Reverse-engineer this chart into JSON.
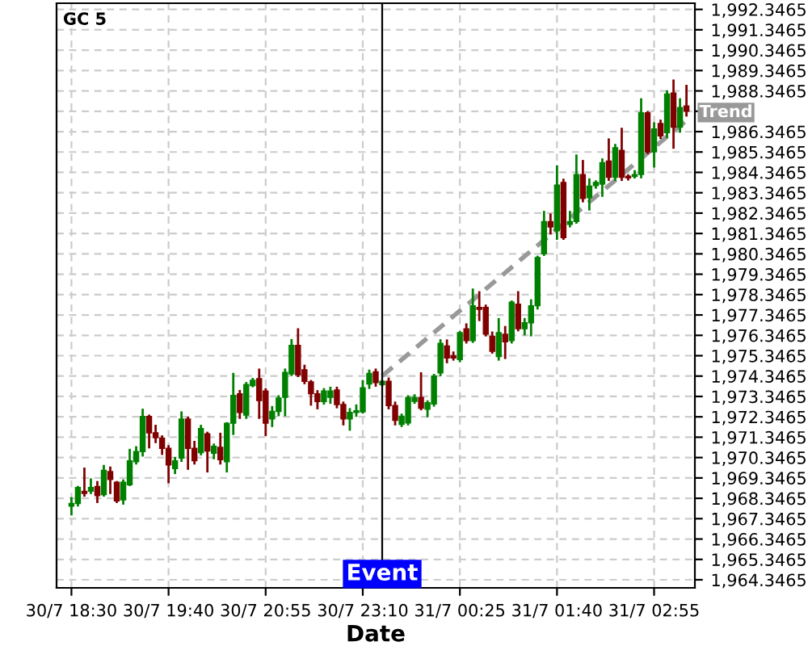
{
  "chart_data": {
    "type": "candlestick",
    "title": "GC 5",
    "xlabel": "Date",
    "categories": [
      "30/7 18:30",
      null,
      null,
      null,
      null,
      null,
      null,
      null,
      null,
      null,
      null,
      null,
      null,
      null,
      null,
      "30/7 19:40",
      null,
      null,
      null,
      null,
      null,
      null,
      null,
      null,
      null,
      null,
      null,
      null,
      null,
      null,
      "30/7 20:55",
      null,
      null,
      null,
      null,
      null,
      null,
      null,
      null,
      null,
      null,
      null,
      null,
      null,
      null,
      "30/7 23:10",
      null,
      null,
      null,
      null,
      null,
      null,
      null,
      null,
      null,
      null,
      null,
      null,
      null,
      null,
      "31/7 00:25",
      null,
      null,
      null,
      null,
      null,
      null,
      null,
      null,
      null,
      null,
      null,
      null,
      null,
      null,
      "31/7 01:40",
      null,
      null,
      null,
      null,
      null,
      null,
      null,
      null,
      null,
      null,
      null,
      null,
      null,
      null,
      "31/7 02:55",
      null,
      null,
      null,
      null,
      null
    ],
    "ohlc": [
      [
        1967.96,
        1968.35,
        1967.56,
        1968.09
      ],
      [
        1968.09,
        1968.9,
        1968.0,
        1968.88
      ],
      [
        1968.69,
        1969.8,
        1968.48,
        1968.59
      ],
      [
        1968.69,
        1969.27,
        1968.61,
        1968.88
      ],
      [
        1968.93,
        1969.14,
        1968.17,
        1968.48
      ],
      [
        1968.53,
        1969.93,
        1968.48,
        1969.72
      ],
      [
        1969.66,
        1969.85,
        1968.61,
        1969.27
      ],
      [
        1969.14,
        1969.14,
        1968.17,
        1968.22
      ],
      [
        1968.27,
        1969.22,
        1968.09,
        1969.14
      ],
      [
        1969.01,
        1970.72,
        1969.0,
        1970.19
      ],
      [
        1970.14,
        1970.85,
        1970.06,
        1970.64
      ],
      [
        1970.64,
        1972.69,
        1970.45,
        1972.37
      ],
      [
        1972.37,
        1972.4,
        1970.85,
        1971.56
      ],
      [
        1971.56,
        1971.9,
        1971.11,
        1971.32
      ],
      [
        1971.3,
        1971.38,
        1970.53,
        1970.8
      ],
      [
        1970.8,
        1970.9,
        1969.14,
        1969.98
      ],
      [
        1969.8,
        1970.32,
        1969.59,
        1970.19
      ],
      [
        1970.32,
        1972.56,
        1970.19,
        1972.24
      ],
      [
        1972.24,
        1972.3,
        1969.8,
        1970.8
      ],
      [
        1970.8,
        1971.11,
        1970.06,
        1970.19
      ],
      [
        1970.59,
        1971.9,
        1970.51,
        1971.77
      ],
      [
        1971.51,
        1971.56,
        1969.67,
        1970.67
      ],
      [
        1970.56,
        1970.98,
        1970.32,
        1970.9
      ],
      [
        1970.85,
        1971.51,
        1970.06,
        1970.24
      ],
      [
        1970.14,
        1972.03,
        1969.67,
        1972.03
      ],
      [
        1972.03,
        1974.45,
        1971.51,
        1973.4
      ],
      [
        1973.48,
        1973.61,
        1972.3,
        1972.56
      ],
      [
        1972.43,
        1974.0,
        1972.3,
        1973.93
      ],
      [
        1973.88,
        1974.2,
        1973.85,
        1974.14
      ],
      [
        1974.22,
        1974.66,
        1972.3,
        1973.14
      ],
      [
        1973.61,
        1973.7,
        1971.46,
        1972.03
      ],
      [
        1972.24,
        1972.82,
        1971.9,
        1972.61
      ],
      [
        1972.61,
        1973.35,
        1972.43,
        1973.27
      ],
      [
        1973.3,
        1974.66,
        1972.43,
        1974.53
      ],
      [
        1974.45,
        1976.11,
        1974.4,
        1975.85
      ],
      [
        1975.85,
        1976.64,
        1974.35,
        1974.4
      ],
      [
        1974.66,
        1974.85,
        1974.0,
        1974.09
      ],
      [
        1974.06,
        1974.1,
        1972.95,
        1973.48
      ],
      [
        1973.48,
        1973.6,
        1972.77,
        1973.09
      ],
      [
        1973.09,
        1973.7,
        1973.0,
        1973.61
      ],
      [
        1973.3,
        1973.77,
        1973.04,
        1973.61
      ],
      [
        1973.66,
        1973.77,
        1972.82,
        1972.95
      ],
      [
        1972.95,
        1973.04,
        1971.98,
        1972.24
      ],
      [
        1972.24,
        1972.72,
        1971.72,
        1972.56
      ],
      [
        1972.56,
        1972.9,
        1972.4,
        1972.64
      ],
      [
        1972.59,
        1974.09,
        1972.56,
        1973.77
      ],
      [
        1973.96,
        1974.61,
        1973.77,
        1974.48
      ],
      [
        1974.56,
        1974.66,
        1973.88,
        1974.03
      ],
      [
        1973.93,
        1974.1,
        1973.9,
        1974.09
      ],
      [
        1974.09,
        1974.22,
        1972.77,
        1972.9
      ],
      [
        1972.9,
        1973.04,
        1971.98,
        1972.17
      ],
      [
        1971.98,
        1972.45,
        1971.9,
        1972.38
      ],
      [
        1972.04,
        1973.35,
        1971.98,
        1973.3
      ],
      [
        1973.1,
        1973.4,
        1973.04,
        1973.3
      ],
      [
        1973.3,
        1974.48,
        1972.72,
        1972.77
      ],
      [
        1972.72,
        1973.1,
        1972.38,
        1973.04
      ],
      [
        1972.98,
        1974.4,
        1972.9,
        1974.35
      ],
      [
        1974.5,
        1976.1,
        1974.4,
        1975.95
      ],
      [
        1975.82,
        1976.09,
        1975.03,
        1975.24
      ],
      [
        1975.35,
        1975.5,
        1975.16,
        1975.24
      ],
      [
        1975.16,
        1976.5,
        1975.08,
        1976.48
      ],
      [
        1976.67,
        1976.88,
        1976.0,
        1976.09
      ],
      [
        1976.09,
        1978.59,
        1976.03,
        1977.8
      ],
      [
        1977.72,
        1978.46,
        1977.1,
        1977.62
      ],
      [
        1977.72,
        1977.8,
        1976.35,
        1976.4
      ],
      [
        1976.3,
        1976.48,
        1975.5,
        1975.56
      ],
      [
        1975.3,
        1977.14,
        1975.16,
        1976.48
      ],
      [
        1976.4,
        1976.75,
        1975.24,
        1976.03
      ],
      [
        1976.09,
        1978.0,
        1976.0,
        1977.98
      ],
      [
        1977.88,
        1978.46,
        1976.6,
        1976.67
      ],
      [
        1976.67,
        1977.14,
        1976.4,
        1976.96
      ],
      [
        1976.96,
        1978.06,
        1976.35,
        1977.8
      ],
      [
        1977.8,
        1980.2,
        1977.67,
        1980.17
      ],
      [
        1980.35,
        1982.4,
        1980.3,
        1981.93
      ],
      [
        1981.93,
        1982.27,
        1981.35,
        1981.67
      ],
      [
        1981.48,
        1984.64,
        1981.09,
        1983.72
      ],
      [
        1983.85,
        1983.98,
        1981.09,
        1981.14
      ],
      [
        1981.8,
        1982.4,
        1981.7,
        1981.93
      ],
      [
        1981.93,
        1985.17,
        1981.88,
        1984.24
      ],
      [
        1984.24,
        1984.9,
        1982.93,
        1983.06
      ],
      [
        1983.1,
        1984.0,
        1982.53,
        1983.67
      ],
      [
        1983.7,
        1983.9,
        1983.6,
        1983.85
      ],
      [
        1983.77,
        1984.98,
        1983.2,
        1984.82
      ],
      [
        1984.9,
        1985.96,
        1983.98,
        1984.11
      ],
      [
        1984.11,
        1985.69,
        1983.98,
        1985.56
      ],
      [
        1985.43,
        1986.48,
        1983.98,
        1984.11
      ],
      [
        1984.16,
        1984.2,
        1984.0,
        1984.08
      ],
      [
        1984.14,
        1984.4,
        1984.1,
        1984.24
      ],
      [
        1984.24,
        1987.93,
        1984.11,
        1987.27
      ],
      [
        1987.27,
        1987.3,
        1985.3,
        1985.35
      ],
      [
        1985.35,
        1986.75,
        1984.64,
        1986.48
      ],
      [
        1986.75,
        1986.88,
        1986.04,
        1986.14
      ],
      [
        1986.3,
        1988.32,
        1986.09,
        1988.19
      ],
      [
        1988.24,
        1988.85,
        1985.56,
        1986.56
      ],
      [
        1986.56,
        1987.93,
        1986.35,
        1987.53
      ],
      [
        1987.61,
        1988.59,
        1987.14,
        1987.35
      ]
    ],
    "colors": [
      "#008000",
      "#008000",
      "#800000",
      "#008000",
      "#800000",
      "#008000",
      "#800000",
      "#800000",
      "#008000",
      "#008000",
      "#008000",
      "#008000",
      "#800000",
      "#800000",
      "#800000",
      "#800000",
      "#008000",
      "#008000",
      "#800000",
      "#800000",
      "#008000",
      "#800000",
      "#008000",
      "#800000",
      "#008000",
      "#008000",
      "#800000",
      "#008000",
      "#008000",
      "#800000",
      "#800000",
      "#008000",
      "#008000",
      "#008000",
      "#008000",
      "#800000",
      "#800000",
      "#800000",
      "#800000",
      "#008000",
      "#008000",
      "#800000",
      "#800000",
      "#008000",
      "#008000",
      "#008000",
      "#008000",
      "#800000",
      "#008000",
      "#800000",
      "#800000",
      "#008000",
      "#008000",
      "#008000",
      "#800000",
      "#008000",
      "#008000",
      "#008000",
      "#800000",
      "#800000",
      "#008000",
      "#800000",
      "#008000",
      "#800000",
      "#800000",
      "#800000",
      "#008000",
      "#800000",
      "#008000",
      "#800000",
      "#008000",
      "#008000",
      "#008000",
      "#008000",
      "#800000",
      "#008000",
      "#800000",
      "#008000",
      "#008000",
      "#800000",
      "#008000",
      "#008000",
      "#008000",
      "#800000",
      "#008000",
      "#800000",
      "#800000",
      "#008000",
      "#008000",
      "#800000",
      "#008000",
      "#800000",
      "#008000",
      "#800000",
      "#008000",
      "#800000"
    ],
    "series": [
      {
        "type": "line",
        "name": "Trend",
        "values": [
          null,
          null,
          null,
          null,
          null,
          null,
          null,
          null,
          null,
          null,
          null,
          null,
          null,
          null,
          null,
          null,
          null,
          null,
          null,
          null,
          null,
          null,
          null,
          null,
          null,
          null,
          null,
          null,
          null,
          null,
          null,
          null,
          null,
          null,
          null,
          null,
          null,
          null,
          null,
          null,
          null,
          null,
          null,
          null,
          null,
          null,
          null,
          null,
          1974.35,
          null,
          null,
          null,
          null,
          null,
          null,
          null,
          null,
          null,
          null,
          null,
          null,
          null,
          null,
          null,
          null,
          null,
          null,
          null,
          null,
          null,
          null,
          null,
          null,
          null,
          null,
          null,
          null,
          null,
          null,
          null,
          null,
          null,
          null,
          null,
          null,
          null,
          null,
          null,
          null,
          null,
          null,
          null,
          null,
          null,
          null,
          1986.9
        ],
        "color": "#999999",
        "line_style": "dashed"
      }
    ],
    "annotations": [
      "Event"
    ],
    "ylim": [
      1963.95,
      1992.65
    ],
    "yticks": [
      {
        "value": 1964.3465,
        "label": "1,964.3465"
      },
      {
        "value": 1965.3465,
        "label": "1,965.3465"
      },
      {
        "value": 1966.3465,
        "label": "1,966.3465"
      },
      {
        "value": 1967.3465,
        "label": "1,967.3465"
      },
      {
        "value": 1968.3465,
        "label": "1,968.3465"
      },
      {
        "value": 1969.3465,
        "label": "1,969.3465"
      },
      {
        "value": 1970.3465,
        "label": "1,970.3465"
      },
      {
        "value": 1971.3465,
        "label": "1,971.3465"
      },
      {
        "value": 1972.3465,
        "label": "1,972.3465"
      },
      {
        "value": 1973.3465,
        "label": "1,973.3465"
      },
      {
        "value": 1974.3465,
        "label": "1,974.3465"
      },
      {
        "value": 1975.3465,
        "label": "1,975.3465"
      },
      {
        "value": 1976.3465,
        "label": "1,976.3465"
      },
      {
        "value": 1977.3465,
        "label": "1,977.3465"
      },
      {
        "value": 1978.3465,
        "label": "1,978.3465"
      },
      {
        "value": 1979.3465,
        "label": "1,979.3465"
      },
      {
        "value": 1980.3465,
        "label": "1,980.3465"
      },
      {
        "value": 1981.3465,
        "label": "1,981.3465"
      },
      {
        "value": 1982.3465,
        "label": "1,982.3465"
      },
      {
        "value": 1983.3465,
        "label": "1,983.3465"
      },
      {
        "value": 1984.3465,
        "label": "1,984.3465"
      },
      {
        "value": 1985.3465,
        "label": "1,985.3465"
      },
      {
        "value": 1986.3465,
        "label": "1,986.3465"
      },
      {
        "value": 1987.3465,
        "label": null
      },
      {
        "value": 1988.3465,
        "label": "1,988.3465"
      },
      {
        "value": 1989.3465,
        "label": "1,989.3465"
      },
      {
        "value": 1990.3465,
        "label": "1,990.3465"
      },
      {
        "value": 1991.3465,
        "label": "1,991.3465"
      },
      {
        "value": 1992.3465,
        "label": "1,992.3465"
      }
    ],
    "grid": true
  }
}
